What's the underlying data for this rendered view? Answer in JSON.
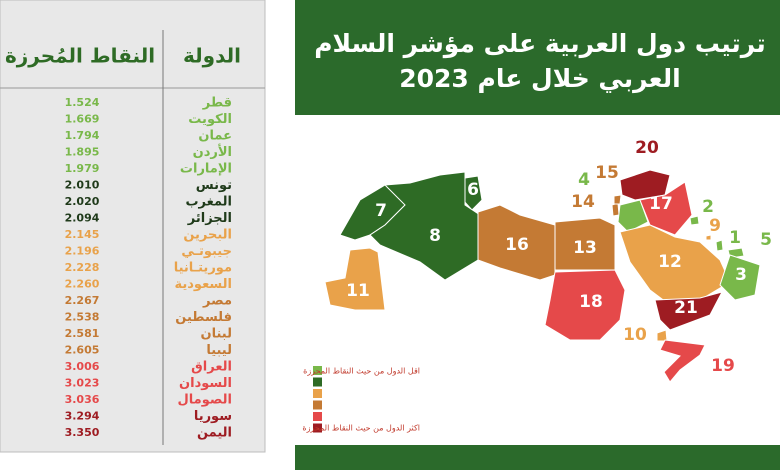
{
  "header": {
    "title_lines": [
      "ترتيب دول العربية على مؤشر السلام",
      "العربي خلال عام 2023"
    ]
  },
  "table": {
    "headers": [
      "الدولة",
      "النقاط المُحرزة"
    ],
    "rows": [
      {
        "country": "قطر",
        "score": "1.524",
        "color": "#79b84a"
      },
      {
        "country": "الكويت",
        "score": "1.669",
        "color": "#79b84a"
      },
      {
        "country": "عمان",
        "score": "1.794",
        "color": "#79b84a"
      },
      {
        "country": "الأردن",
        "score": "1.895",
        "color": "#79b84a"
      },
      {
        "country": "الإمارات",
        "score": "1.979",
        "color": "#79b84a"
      },
      {
        "country": "تونس",
        "score": "2.010",
        "color": "#1f3a1a"
      },
      {
        "country": "المغرب",
        "score": "2.020",
        "color": "#1f3a1a"
      },
      {
        "country": "الجزائر",
        "score": "2.094",
        "color": "#1f3a1a"
      },
      {
        "country": "البحرين",
        "score": "2.145",
        "color": "#e9a24a"
      },
      {
        "country": "جيبوتـي",
        "score": "2.196",
        "color": "#e9a24a"
      },
      {
        "country": "موريتـانيا",
        "score": "2.228",
        "color": "#e9a24a"
      },
      {
        "country": "السعودية",
        "score": "2.260",
        "color": "#e9a24a"
      },
      {
        "country": "مصر",
        "score": "2.267",
        "color": "#c47a34"
      },
      {
        "country": "فلسطين",
        "score": "2.538",
        "color": "#c47a34"
      },
      {
        "country": "لبنان",
        "score": "2.581",
        "color": "#c47a34"
      },
      {
        "country": "ليبيا",
        "score": "2.605",
        "color": "#c47a34"
      },
      {
        "country": "العراق",
        "score": "3.006",
        "color": "#e5494a"
      },
      {
        "country": "السودان",
        "score": "3.023",
        "color": "#e5494a"
      },
      {
        "country": "الصومال",
        "score": "3.036",
        "color": "#e5494a"
      },
      {
        "country": "سوريا",
        "score": "3.294",
        "color": "#9e1c22"
      },
      {
        "country": "اليمن",
        "score": "3.350",
        "color": "#9e1c22"
      }
    ]
  },
  "map": {
    "regions": [
      {
        "label": "20",
        "color": "#9e1c22"
      },
      {
        "label": "15",
        "color": "#c47a34"
      },
      {
        "label": "4",
        "color": "#79b84a"
      },
      {
        "label": "14",
        "color": "#c47a34"
      },
      {
        "label": "17",
        "color": "#e5494a"
      },
      {
        "label": "2",
        "color": "#79b84a"
      },
      {
        "label": "9",
        "color": "#e9a24a"
      },
      {
        "label": "1",
        "color": "#79b84a"
      },
      {
        "label": "5",
        "color": "#79b84a"
      },
      {
        "label": "7",
        "color": "#2e6b25"
      },
      {
        "label": "6",
        "color": "#2e6b25"
      },
      {
        "label": "8",
        "color": "#2e6b25"
      },
      {
        "label": "16",
        "color": "#c47a34"
      },
      {
        "label": "13",
        "color": "#c47a34"
      },
      {
        "label": "12",
        "color": "#e9a24a"
      },
      {
        "label": "3",
        "color": "#79b84a"
      },
      {
        "label": "11",
        "color": "#e9a24a"
      },
      {
        "label": "18",
        "color": "#e5494a"
      },
      {
        "label": "21",
        "color": "#9e1c22"
      },
      {
        "label": "10",
        "color": "#e9a24a"
      },
      {
        "label": "19",
        "color": "#e5494a"
      }
    ],
    "legend": {
      "colors": [
        "#79b84a",
        "#2e6b25",
        "#e9a24a",
        "#c47a34",
        "#e5494a",
        "#9e1c22"
      ],
      "low": "اقل الدول من حيث النقاط المحرزة",
      "high": "اكثر الدول من حيث النقاط المحرزة"
    }
  }
}
